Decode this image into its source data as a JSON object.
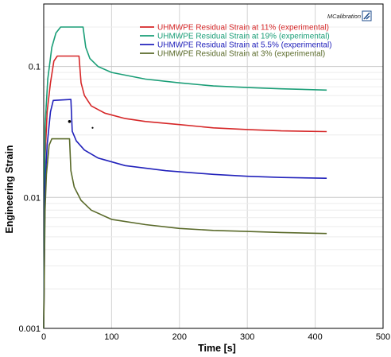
{
  "logo": {
    "text": "MCalibration"
  },
  "chart_data": {
    "type": "line",
    "xlabel": "Time [s]",
    "ylabel": "Engineering Strain",
    "xlim": [
      0,
      500
    ],
    "ylim": [
      0.001,
      0.3
    ],
    "yscale": "log",
    "x_ticks": [
      "0",
      "100",
      "200",
      "300",
      "400",
      "500"
    ],
    "y_ticks": [
      "0.001",
      "0.01",
      "0.1"
    ],
    "grid": true,
    "legend_position": "top-right",
    "series": [
      {
        "name": "UHMWPE  Residual Strain at 11% (experimental)",
        "color": "#d62728",
        "points": [
          [
            0,
            0.001
          ],
          [
            2,
            0.02
          ],
          [
            5,
            0.045
          ],
          [
            10,
            0.075
          ],
          [
            15,
            0.11
          ],
          [
            20,
            0.12
          ],
          [
            52,
            0.12
          ],
          [
            55,
            0.075
          ],
          [
            60,
            0.06
          ],
          [
            70,
            0.05
          ],
          [
            90,
            0.044
          ],
          [
            120,
            0.04
          ],
          [
            150,
            0.038
          ],
          [
            200,
            0.036
          ],
          [
            250,
            0.034
          ],
          [
            300,
            0.033
          ],
          [
            350,
            0.0322
          ],
          [
            417,
            0.0318
          ]
        ]
      },
      {
        "name": "UHMWPE  Residual Strain at 19% (experimental)",
        "color": "#1a9e77",
        "points": [
          [
            0,
            0.001
          ],
          [
            2,
            0.035
          ],
          [
            6,
            0.08
          ],
          [
            12,
            0.14
          ],
          [
            18,
            0.18
          ],
          [
            25,
            0.2
          ],
          [
            58,
            0.2
          ],
          [
            62,
            0.14
          ],
          [
            68,
            0.115
          ],
          [
            80,
            0.1
          ],
          [
            100,
            0.09
          ],
          [
            150,
            0.08
          ],
          [
            200,
            0.075
          ],
          [
            250,
            0.071
          ],
          [
            300,
            0.069
          ],
          [
            350,
            0.0675
          ],
          [
            417,
            0.066
          ]
        ]
      },
      {
        "name": "UHMWPE  Residual Strain at 5.5% (experimental)",
        "color": "#2222bb",
        "points": [
          [
            0,
            0.001
          ],
          [
            2,
            0.012
          ],
          [
            5,
            0.025
          ],
          [
            10,
            0.045
          ],
          [
            14,
            0.055
          ],
          [
            40,
            0.056
          ],
          [
            42,
            0.032
          ],
          [
            48,
            0.027
          ],
          [
            60,
            0.023
          ],
          [
            80,
            0.02
          ],
          [
            120,
            0.0175
          ],
          [
            180,
            0.016
          ],
          [
            250,
            0.015
          ],
          [
            300,
            0.0145
          ],
          [
            350,
            0.0142
          ],
          [
            417,
            0.014
          ]
        ]
      },
      {
        "name": "UHMWPE  Residual Strain at 3% (experimental)",
        "color": "#5a6a2a",
        "points": [
          [
            0,
            0.001
          ],
          [
            2,
            0.008
          ],
          [
            4,
            0.015
          ],
          [
            8,
            0.025
          ],
          [
            12,
            0.028
          ],
          [
            38,
            0.028
          ],
          [
            40,
            0.016
          ],
          [
            45,
            0.012
          ],
          [
            55,
            0.0095
          ],
          [
            70,
            0.008
          ],
          [
            100,
            0.0068
          ],
          [
            150,
            0.0062
          ],
          [
            200,
            0.0058
          ],
          [
            250,
            0.0056
          ],
          [
            300,
            0.0055
          ],
          [
            350,
            0.0054
          ],
          [
            417,
            0.0053
          ]
        ]
      }
    ],
    "markers": [
      [
        38,
        0.038
      ],
      [
        72,
        0.034
      ]
    ]
  }
}
